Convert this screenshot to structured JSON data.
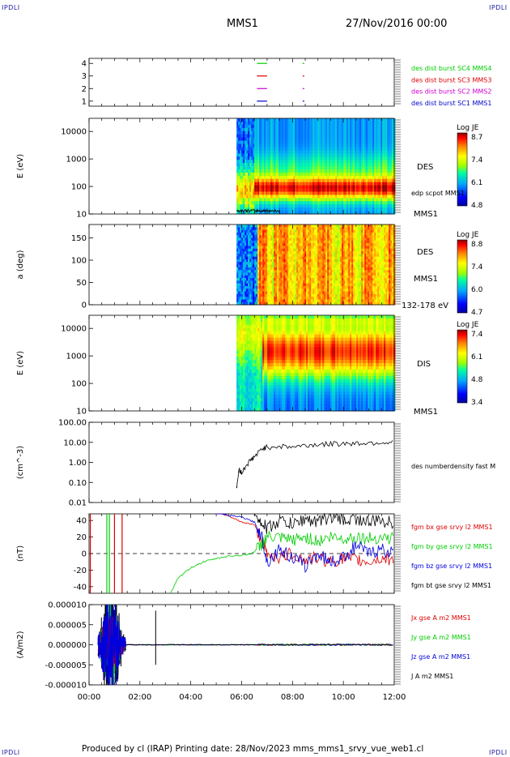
{
  "corner_label": "IPDLI",
  "header": {
    "spacecraft": "MMS1",
    "date": "27/Nov/2016 00:00"
  },
  "footer": {
    "text": "Produced by cl (IRAP)   Printing date: 28/Nov/2023   mms_mms1_srvy_vue_web1.cl"
  },
  "time_axis": {
    "ticks": [
      "00:00",
      "02:00",
      "04:00",
      "06:00",
      "08:00",
      "10:00",
      "12:00"
    ],
    "range_hours": [
      0,
      12
    ]
  },
  "chart_data": [
    {
      "type": "line",
      "id": "burst",
      "ytick_labels": [
        "1",
        "2",
        "3",
        "4"
      ],
      "ylim": [
        0.6,
        4.4
      ],
      "series": [
        {
          "name": "des dist burst SC1 MMS1",
          "color": "#0000cc",
          "y": 1,
          "segments": [
            [
              6.6,
              7.0
            ],
            [
              8.4,
              8.5
            ]
          ]
        },
        {
          "name": "des dist burst SC2 MMS2",
          "color": "#cc00cc",
          "y": 2,
          "segments": [
            [
              6.6,
              7.0
            ],
            [
              8.4,
              8.5
            ]
          ]
        },
        {
          "name": "des dist burst SC3 MMS3",
          "color": "#dd0000",
          "y": 3,
          "segments": [
            [
              6.6,
              7.0
            ],
            [
              8.4,
              8.5
            ]
          ]
        },
        {
          "name": "des dist burst SC4 MMS4",
          "color": "#00cc00",
          "y": 4,
          "segments": [
            [
              6.6,
              7.0
            ],
            [
              8.4,
              8.5
            ]
          ]
        }
      ]
    },
    {
      "type": "heatmap",
      "id": "des_energy",
      "ylabel": "E (eV)",
      "ytick_labels": [
        "10",
        "100",
        "1000",
        "10000"
      ],
      "ylog": true,
      "ylim": [
        10,
        30000
      ],
      "species": "DES",
      "craft": "MMS1",
      "overlay_label": "edp scpot MMS1",
      "colorbar": {
        "title": "Log JE",
        "max": "8.7",
        "mid1": "7.4",
        "mid2": "6.1",
        "min": "4.8"
      },
      "data_start_hour": 5.8
    },
    {
      "type": "heatmap",
      "id": "des_pitch",
      "ylabel": "a (deg)",
      "ytick_labels": [
        "0",
        "50",
        "100",
        "150"
      ],
      "ylim": [
        0,
        180
      ],
      "species": "DES",
      "craft": "MMS1",
      "energy_range": "132-178 eV",
      "colorbar": {
        "title": "Log JE",
        "max": "8.8",
        "mid1": "7.4",
        "mid2": "6.0",
        "min": "4.7"
      },
      "data_start_hour": 5.8
    },
    {
      "type": "heatmap",
      "id": "dis_energy",
      "ylabel": "E (eV)",
      "ytick_labels": [
        "10",
        "100",
        "1000",
        "10000"
      ],
      "ylog": true,
      "ylim": [
        10,
        30000
      ],
      "species": "DIS",
      "craft": "MMS1",
      "colorbar": {
        "title": "Log JE",
        "max": "7.4",
        "mid1": "6.1",
        "mid2": "4.8",
        "min": "3.4"
      },
      "data_start_hour": 5.8
    },
    {
      "type": "line",
      "id": "density",
      "ylabel": "(cm^-3)",
      "ylog": true,
      "ytick_labels": [
        "0.01",
        "0.10",
        "1.00",
        "10.00",
        "100.00"
      ],
      "ylim": [
        0.01,
        100
      ],
      "series": [
        {
          "name": "des numberdensity fast M",
          "color": "#000000",
          "points": [
            [
              5.8,
              0.05
            ],
            [
              5.9,
              0.5
            ],
            [
              6.0,
              0.3
            ],
            [
              6.2,
              0.8
            ],
            [
              6.4,
              1.5
            ],
            [
              6.6,
              2.5
            ],
            [
              6.8,
              5.0
            ],
            [
              7.0,
              6.0
            ],
            [
              7.5,
              6.5
            ],
            [
              8.0,
              6.0
            ],
            [
              8.5,
              7.0
            ],
            [
              9.0,
              8.0
            ],
            [
              9.5,
              8.5
            ],
            [
              10.0,
              9.0
            ],
            [
              10.5,
              9.0
            ],
            [
              11.0,
              9.5
            ],
            [
              11.5,
              10.0
            ],
            [
              12.0,
              10.0
            ]
          ]
        }
      ]
    },
    {
      "type": "line",
      "id": "bfield",
      "ylabel": "(nT)",
      "ytick_labels": [
        "-40",
        "-20",
        "0",
        "20",
        "40"
      ],
      "ylim": [
        -48,
        48
      ],
      "zero_line": true,
      "series": [
        {
          "name": "fgm bx gse srvy l2 MMS1",
          "color": "#dd0000",
          "points": [
            [
              5.0,
              50
            ],
            [
              5.5,
              45
            ],
            [
              6.0,
              38
            ],
            [
              6.5,
              35
            ],
            [
              6.8,
              15
            ],
            [
              7.0,
              0
            ],
            [
              7.5,
              -5
            ],
            [
              8.0,
              0
            ],
            [
              8.5,
              -8
            ],
            [
              9.0,
              -5
            ],
            [
              9.5,
              -10
            ],
            [
              10.0,
              -6
            ],
            [
              10.5,
              -8
            ],
            [
              11.0,
              -10
            ],
            [
              11.5,
              -6
            ],
            [
              12.0,
              -8
            ]
          ]
        },
        {
          "name": "fgm by gse srvy l2 MMS1",
          "color": "#00cc00",
          "points": [
            [
              3.2,
              -48
            ],
            [
              3.5,
              -30
            ],
            [
              4.0,
              -17
            ],
            [
              4.5,
              -10
            ],
            [
              5.0,
              -6
            ],
            [
              5.5,
              -3
            ],
            [
              6.0,
              -2
            ],
            [
              6.4,
              0
            ],
            [
              6.7,
              8
            ],
            [
              7.0,
              20
            ],
            [
              7.5,
              18
            ],
            [
              8.0,
              16
            ],
            [
              8.5,
              20
            ],
            [
              9.0,
              15
            ],
            [
              9.5,
              20
            ],
            [
              10.0,
              18
            ],
            [
              10.5,
              20
            ],
            [
              11.0,
              18
            ],
            [
              11.5,
              20
            ],
            [
              12.0,
              18
            ]
          ]
        },
        {
          "name": "fgm bz gse srvy l2 MMS1",
          "color": "#0000dd",
          "points": [
            [
              5.0,
              50
            ],
            [
              5.5,
              46
            ],
            [
              6.0,
              44
            ],
            [
              6.5,
              38
            ],
            [
              6.8,
              20
            ],
            [
              7.0,
              -10
            ],
            [
              7.5,
              5
            ],
            [
              8.0,
              -5
            ],
            [
              8.5,
              -15
            ],
            [
              9.0,
              0
            ],
            [
              9.5,
              -10
            ],
            [
              10.0,
              -5
            ],
            [
              10.5,
              10
            ],
            [
              11.0,
              0
            ],
            [
              11.5,
              5
            ],
            [
              12.0,
              0
            ]
          ]
        },
        {
          "name": "fgm bt gse srvy l2 MMS1",
          "color": "#000000",
          "points": [
            [
              6.5,
              48
            ],
            [
              6.8,
              38
            ],
            [
              7.0,
              30
            ],
            [
              7.5,
              40
            ],
            [
              8.0,
              35
            ],
            [
              8.5,
              42
            ],
            [
              9.0,
              38
            ],
            [
              9.5,
              45
            ],
            [
              10.0,
              40
            ],
            [
              10.5,
              42
            ],
            [
              11.0,
              38
            ],
            [
              11.5,
              40
            ],
            [
              12.0,
              36
            ]
          ]
        }
      ]
    },
    {
      "type": "line",
      "id": "current",
      "ylabel": "(A/m2)",
      "ytick_labels": [
        "-0.000010",
        "-0.000005",
        "0.000000",
        "0.000005",
        "0.000010"
      ],
      "ylim": [
        -1e-05,
        1e-05
      ],
      "series": [
        {
          "name": "Jx gse A m2 MMS1",
          "color": "#dd0000"
        },
        {
          "name": "Jy gse A m2 MMS1",
          "color": "#00cc00"
        },
        {
          "name": "Jz gse A m2 MMS1",
          "color": "#0000dd"
        },
        {
          "name": "J A m2 MMS1",
          "color": "#000000"
        }
      ]
    }
  ]
}
